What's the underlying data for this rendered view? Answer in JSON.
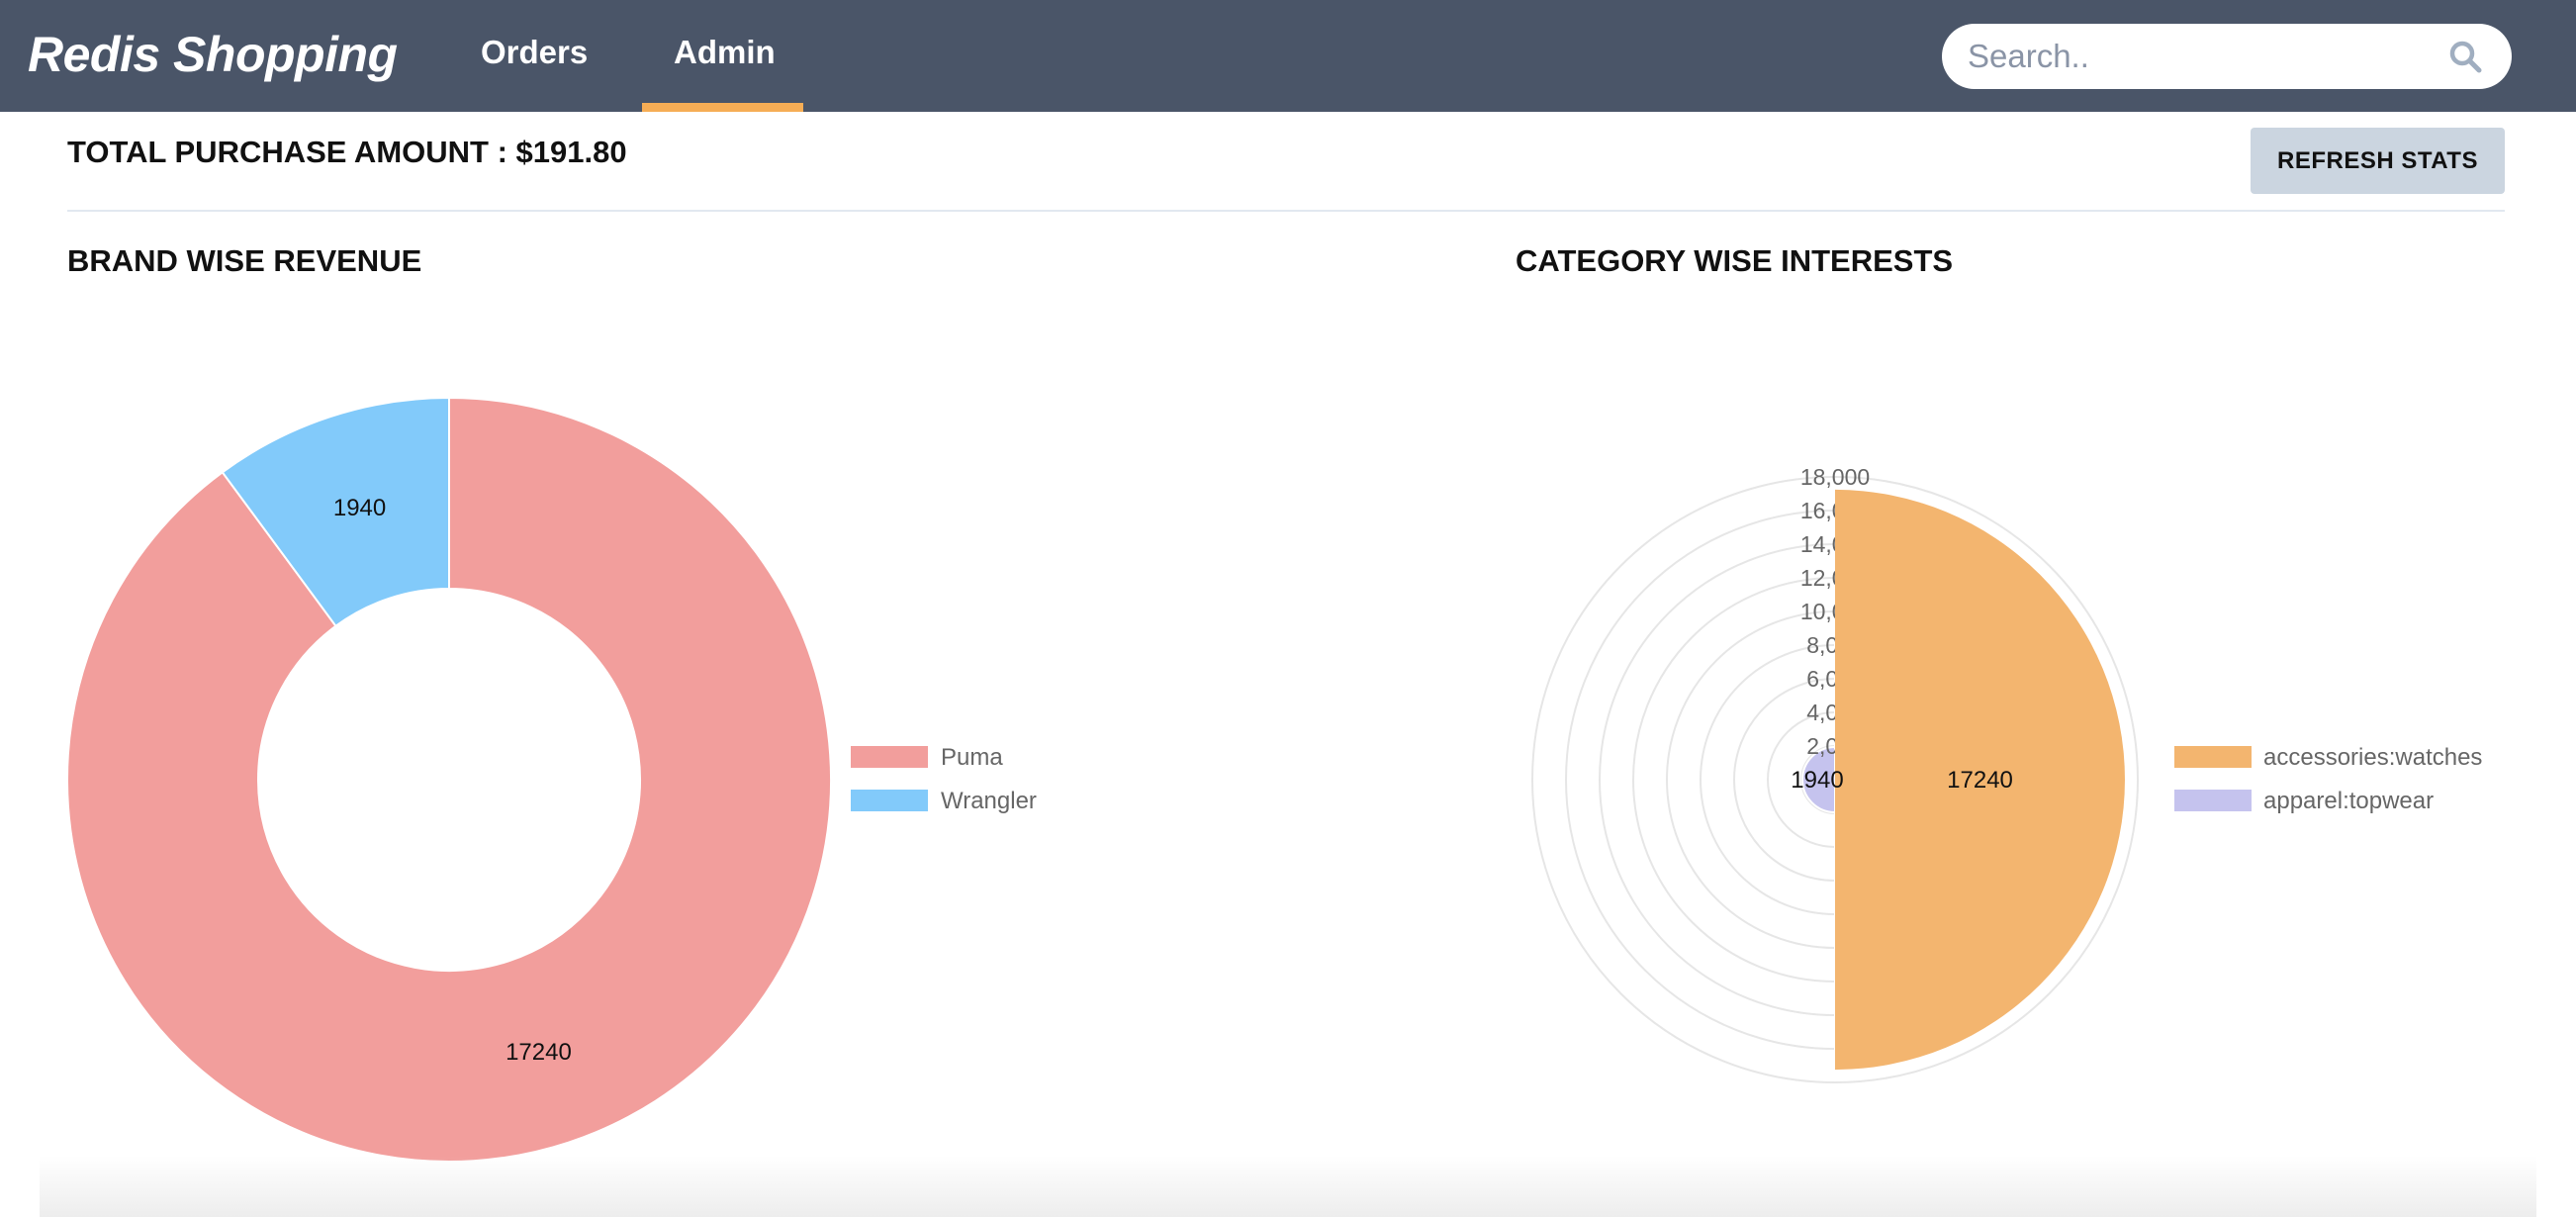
{
  "navbar": {
    "brand": "Redis Shopping",
    "links": [
      "Orders",
      "Admin"
    ],
    "active_link": "Admin",
    "accent_color": "#f6ad55",
    "background_color": "#4a5568"
  },
  "search": {
    "placeholder": "Search..",
    "value": "",
    "icon": "search-icon"
  },
  "stats": {
    "total_purchase": "TOTAL PURCHASE AMOUNT : $191.80",
    "refresh_label": "REFRESH STATS"
  },
  "sections": {
    "brand_title": "BRAND WISE REVENUE",
    "category_title": "CATEGORY WISE INTERESTS"
  },
  "chart_data": [
    {
      "type": "pie",
      "variant": "doughnut",
      "title": "BRAND WISE REVENUE",
      "categories": [
        "Puma",
        "Wrangler"
      ],
      "values": [
        17240,
        1940
      ],
      "colors": [
        "#f29e9c",
        "#82cafa"
      ],
      "data_labels": [
        "17240",
        "1940"
      ],
      "legend_position": "right"
    },
    {
      "type": "polarArea",
      "title": "CATEGORY WISE INTERESTS",
      "categories": [
        "accessories:watches",
        "apparel:topwear"
      ],
      "values": [
        17240,
        1940
      ],
      "colors": [
        "#f3b56f",
        "#c5c3ee"
      ],
      "data_labels": [
        "17240",
        "1940"
      ],
      "radial_ticks": [
        "2,000",
        "4,000",
        "6,000",
        "8,000",
        "10,000",
        "12,000",
        "14,000",
        "16,000",
        "18,000"
      ],
      "radial_max": 18000,
      "legend_position": "right"
    }
  ]
}
